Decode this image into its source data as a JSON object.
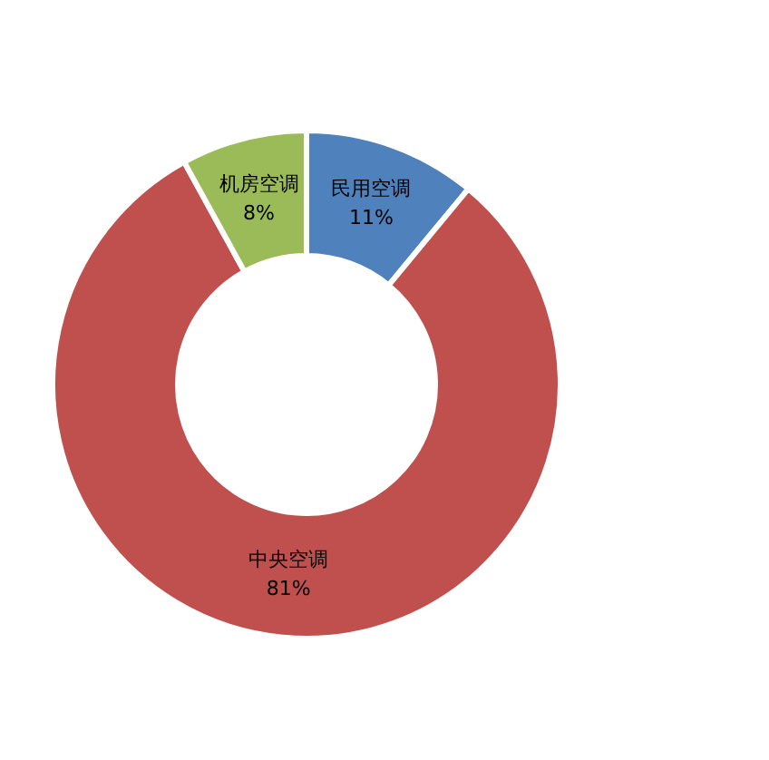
{
  "chart_data": {
    "type": "donut",
    "categories": [
      "民用空调",
      "中央空调",
      "机房空调"
    ],
    "values": [
      11,
      81,
      8
    ],
    "colors": [
      "#4f81bd",
      "#c0504d",
      "#9bbb59"
    ],
    "value_labels": [
      "11%",
      "81%",
      "8%"
    ]
  }
}
